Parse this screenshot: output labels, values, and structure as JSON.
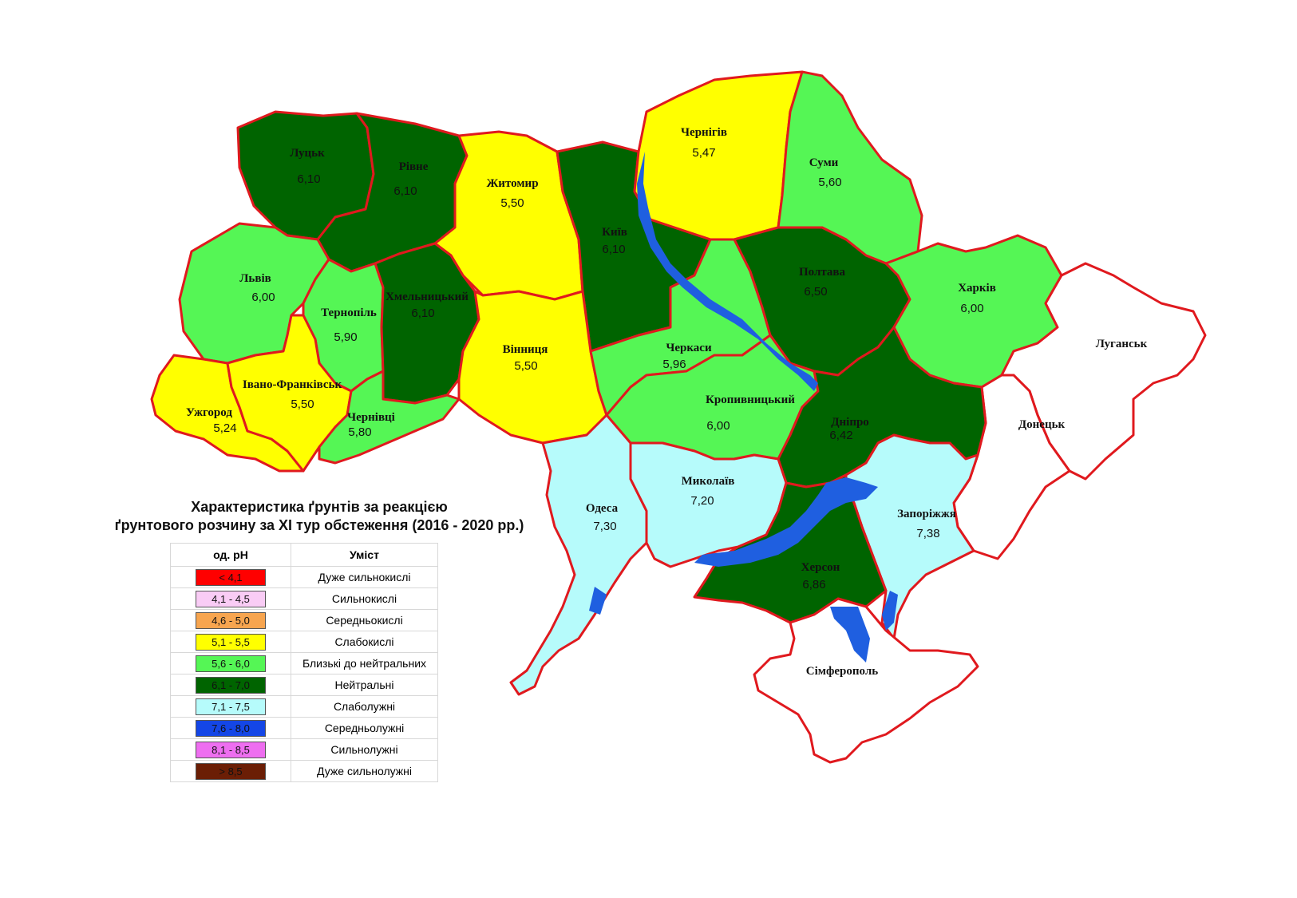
{
  "title_lines": [
    "Характеристика ґрунтів за реакцією",
    "ґрунтового розчину за XI тур обстеження (2016 - 2020 рр.)"
  ],
  "legend": {
    "col_ph": "од. рН",
    "col_content": "Уміст",
    "rows": [
      {
        "range": "< 4,1",
        "label": "Дуже сильнокислі",
        "color": "#ff0000"
      },
      {
        "range": "4,1 - 4,5",
        "label": "Сильнокислі",
        "color": "#f9ccf5"
      },
      {
        "range": "4,6 - 5,0",
        "label": "Середньокислі",
        "color": "#f7a54f"
      },
      {
        "range": "5,1 - 5,5",
        "label": "Слабокислі",
        "color": "#ffff00"
      },
      {
        "range": "5,6 - 6,0",
        "label": "Близькі до нейтральних",
        "color": "#55f655"
      },
      {
        "range": "6,1 - 7,0",
        "label": "Нейтральні",
        "color": "#006400"
      },
      {
        "range": "7,1 - 7,5",
        "label": "Слаболужні",
        "color": "#b6fbfb"
      },
      {
        "range": "7,6 - 8,0",
        "label": "Середньолужні",
        "color": "#1446e6"
      },
      {
        "range": "8,1 - 8,5",
        "label": "Сильнолужні",
        "color": "#ee6ef0"
      },
      {
        "range": "> 8,5",
        "label": "Дуже сильнолужні",
        "color": "#6b1e05"
      }
    ]
  },
  "regions": {
    "lutsk": {
      "name": "Луцьк",
      "value": "6,10",
      "color": "#006400"
    },
    "rivne": {
      "name": "Рівне",
      "value": "6,10",
      "color": "#006400"
    },
    "zhytomyr": {
      "name": "Житомир",
      "value": "5,50",
      "color": "#ffff00"
    },
    "kyiv": {
      "name": "Київ",
      "value": "6,10",
      "color": "#006400"
    },
    "chernihiv": {
      "name": "Чернігів",
      "value": "5,47",
      "color": "#ffff00"
    },
    "sumy": {
      "name": "Суми",
      "value": "5,60",
      "color": "#55f655"
    },
    "lviv": {
      "name": "Львів",
      "value": "6,00",
      "color": "#55f655"
    },
    "ternopil": {
      "name": "Тернопіль",
      "value": "5,90",
      "color": "#55f655"
    },
    "khmelnytskyi": {
      "name": "Хмельницький",
      "value": "6,10",
      "color": "#006400"
    },
    "vinnytsia": {
      "name": "Вінниця",
      "value": "5,50",
      "color": "#ffff00"
    },
    "cherkasy": {
      "name": "Черкаси",
      "value": "5,96",
      "color": "#55f655"
    },
    "poltava": {
      "name": "Полтава",
      "value": "6,50",
      "color": "#006400"
    },
    "kharkiv": {
      "name": "Харків",
      "value": "6,00",
      "color": "#55f655"
    },
    "luhansk": {
      "name": "Луганськ",
      "value": "",
      "color": "#ffffff"
    },
    "uzhhorod": {
      "name": "Ужгород",
      "value": "5,24",
      "color": "#ffff00"
    },
    "ivano_frankivsk": {
      "name": "Івано-Франківськ",
      "value": "5,50",
      "color": "#ffff00"
    },
    "chernivtsi": {
      "name": "Чернівці",
      "value": "5,80",
      "color": "#55f655"
    },
    "kropyvnytskyi": {
      "name": "Кропивницький",
      "value": "6,00",
      "color": "#55f655"
    },
    "dnipro": {
      "name": "Дніпро",
      "value": "6,42",
      "color": "#006400"
    },
    "donetsk": {
      "name": "Донецьк",
      "value": "",
      "color": "#ffffff"
    },
    "odesa": {
      "name": "Одеса",
      "value": "7,30",
      "color": "#b6fbfb"
    },
    "mykolaiv": {
      "name": "Миколаїв",
      "value": "7,20",
      "color": "#b6fbfb"
    },
    "zaporizhzhia": {
      "name": "Запоріжжя",
      "value": "7,38",
      "color": "#b6fbfb"
    },
    "kherson": {
      "name": "Херсон",
      "value": "6,86",
      "color": "#006400"
    },
    "simferopol": {
      "name": "Сімферополь",
      "value": "",
      "color": "#ffffff"
    }
  },
  "water_color": "#1f5fe0",
  "border_color": "#e0191e"
}
